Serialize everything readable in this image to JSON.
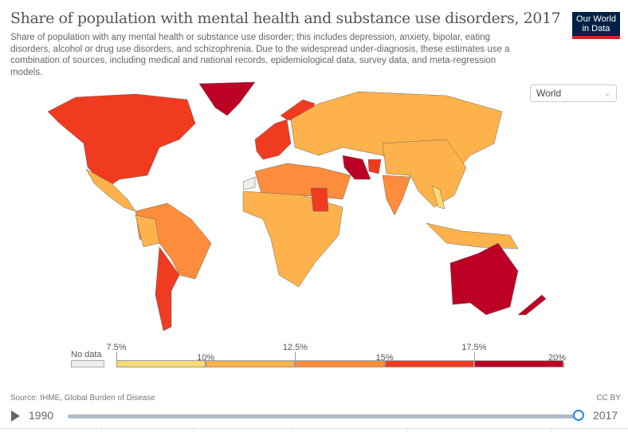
{
  "header": {
    "title": "Share of population with mental health and substance use disorders, 2017",
    "subtitle": "Share of population with any mental health or substance use disorder; this includes depression, anxiety, bipolar, eating disorders, alcohol or drug use disorders, and schizophrenia. Due to the widespread under-diagnosis, these estimates use a combination of sources, including medical and national records, epidemiological data, survey data, and meta-regression models.",
    "logo_line1": "Our World",
    "logo_line2": "in Data"
  },
  "region_select": {
    "value": "World",
    "icon": "chevron-down-icon"
  },
  "legend": {
    "no_data_label": "No data",
    "no_data_color": "#eeeeee",
    "bins": [
      {
        "from": 7.5,
        "to": 10,
        "color": "#fed976"
      },
      {
        "from": 10,
        "to": 12.5,
        "color": "#feb24c"
      },
      {
        "from": 12.5,
        "to": 15,
        "color": "#fd8d3c"
      },
      {
        "from": 15,
        "to": 17.5,
        "color": "#f03b20"
      },
      {
        "from": 17.5,
        "to": 20,
        "color": "#bd0026"
      }
    ],
    "tick_labels": [
      "7.5%",
      "10%",
      "12.5%",
      "15%",
      "17.5%",
      "20%"
    ]
  },
  "chart_data": {
    "type": "choropleth",
    "title": "Share of population with mental health and substance use disorders, 2017",
    "unit": "%",
    "year": 2017,
    "regions": [
      {
        "name": "North America (USA, Canada)",
        "bin": "15-17.5%"
      },
      {
        "name": "Greenland",
        "bin": "17.5-20%"
      },
      {
        "name": "Mexico & Central America",
        "bin": "10-12.5%"
      },
      {
        "name": "Brazil",
        "bin": "12.5-15%"
      },
      {
        "name": "Argentina & Chile",
        "bin": "15-17.5%"
      },
      {
        "name": "Western Europe",
        "bin": "15-17.5%"
      },
      {
        "name": "Eastern Europe & Russia",
        "bin": "10-12.5%"
      },
      {
        "name": "North Africa",
        "bin": "12.5-15%"
      },
      {
        "name": "Sub-Saharan Africa",
        "bin": "10-12.5%"
      },
      {
        "name": "Sudan",
        "bin": "15-17.5%"
      },
      {
        "name": "Iran",
        "bin": "17.5-20%"
      },
      {
        "name": "Afghanistan",
        "bin": "15-17.5%"
      },
      {
        "name": "India",
        "bin": "12.5-15%"
      },
      {
        "name": "China",
        "bin": "10-12.5%"
      },
      {
        "name": "Vietnam",
        "bin": "7.5-10%"
      },
      {
        "name": "Australia",
        "bin": "17.5-20%"
      },
      {
        "name": "New Zealand",
        "bin": "17.5-20%"
      },
      {
        "name": "Western Sahara",
        "bin": "No data"
      }
    ]
  },
  "footer": {
    "source": "Source: IHME, Global Burden of Disease",
    "license": "CC BY"
  },
  "timeline": {
    "start_year": "1990",
    "end_year": "2017",
    "selected_year": 2017,
    "play_icon": "play-icon"
  }
}
